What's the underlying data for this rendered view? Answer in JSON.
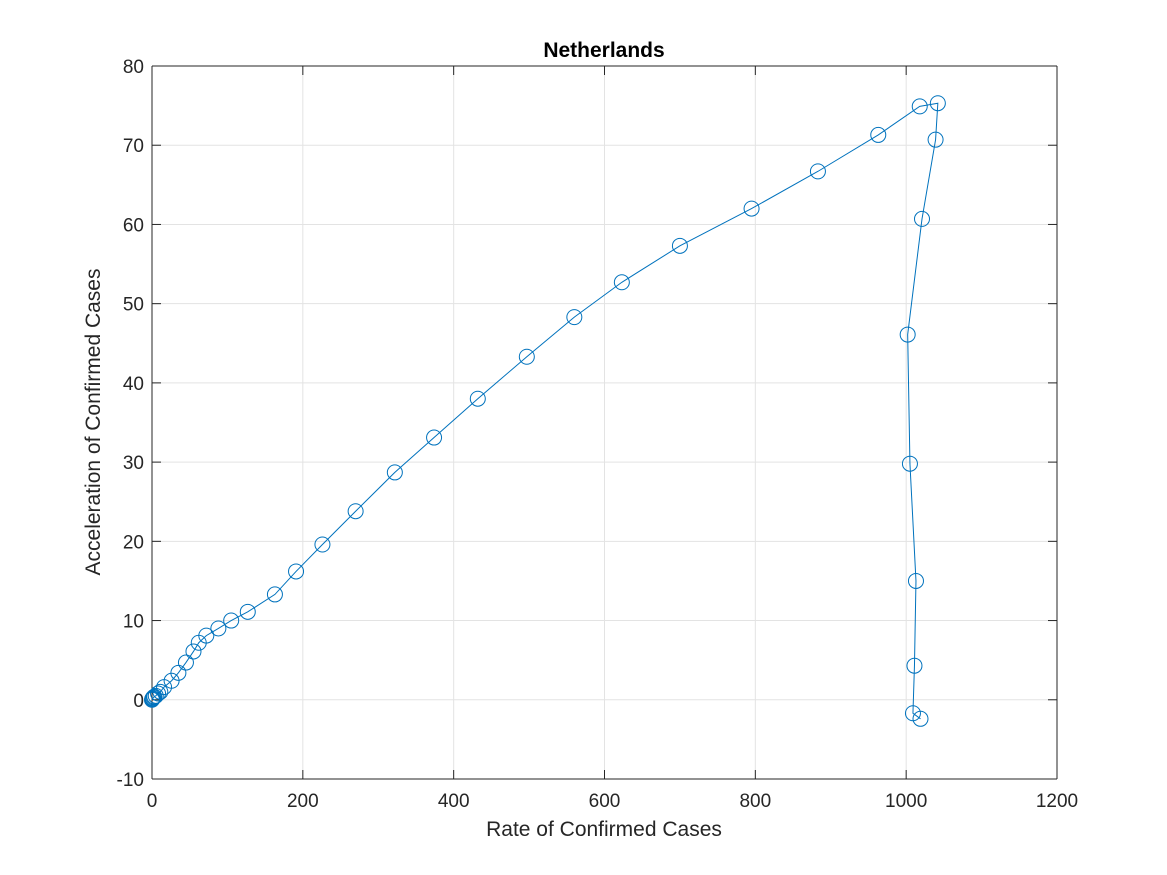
{
  "chart_data": {
    "type": "line",
    "title": "Netherlands",
    "xlabel": "Rate of Confirmed Cases",
    "ylabel": "Acceleration of Confirmed Cases",
    "xlim": [
      0,
      1200
    ],
    "ylim": [
      -10,
      80
    ],
    "xticks": [
      0,
      200,
      400,
      600,
      800,
      1000,
      1200
    ],
    "yticks": [
      -10,
      0,
      10,
      20,
      30,
      40,
      50,
      60,
      70,
      80
    ],
    "grid": true,
    "marker": "circle",
    "color": "#0072BD",
    "series": [
      {
        "x": [
          0,
          0.5,
          1,
          2,
          3,
          5,
          8,
          11,
          16,
          26,
          35,
          45,
          55,
          62,
          72,
          88,
          105,
          127,
          163,
          191,
          226,
          270,
          322,
          374,
          432,
          497,
          560,
          623,
          700,
          795,
          883,
          963,
          1018,
          1042,
          1039,
          1021,
          1002,
          1005,
          1013,
          1011,
          1009,
          1019
        ],
        "y": [
          0,
          0.1,
          0.2,
          0.3,
          0.4,
          0.5,
          0.8,
          1.0,
          1.6,
          2.4,
          3.4,
          4.7,
          6.1,
          7.2,
          8.1,
          9.0,
          10.0,
          11.1,
          13.3,
          16.2,
          19.6,
          23.8,
          28.7,
          33.1,
          38.0,
          43.3,
          48.3,
          52.7,
          57.3,
          62.0,
          66.7,
          71.3,
          74.9,
          75.3,
          70.7,
          60.7,
          46.1,
          29.8,
          15.0,
          4.3,
          -1.7,
          -2.4
        ]
      }
    ]
  }
}
